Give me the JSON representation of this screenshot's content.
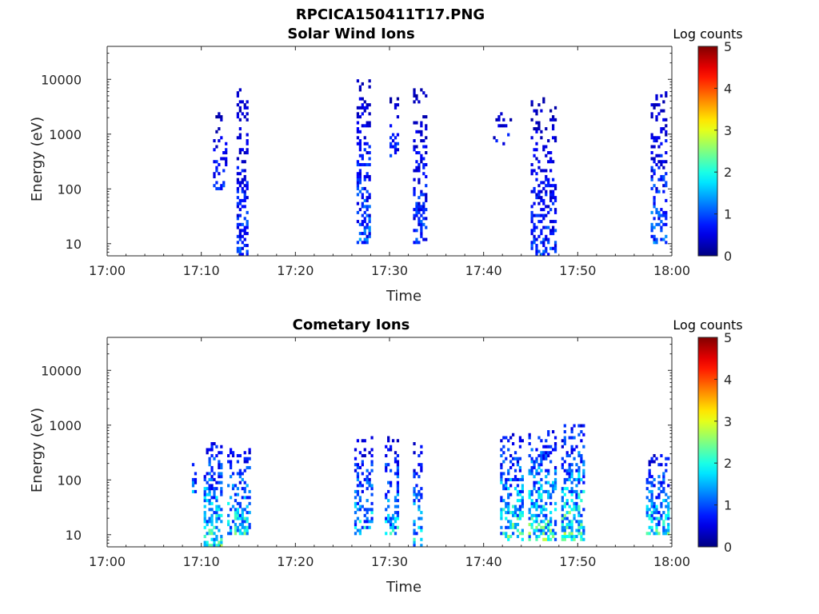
{
  "figure": {
    "title": "RPCICA150411T17.PNG"
  },
  "colormap": {
    "stops": [
      "#00008f",
      "#0000ff",
      "#00ffff",
      "#ffff00",
      "#ff0000",
      "#800000"
    ]
  },
  "chart_data": [
    {
      "type": "heatmap",
      "title": "Solar Wind Ions",
      "xlabel": "Time",
      "ylabel": "Energy (eV)",
      "x_ticks": [
        "17:00",
        "17:10",
        "17:20",
        "17:30",
        "17:40",
        "17:50",
        "18:00"
      ],
      "y_ticks": [
        "10",
        "100",
        "1000",
        "10000"
      ],
      "y_scale": "log",
      "xlim_minutes": [
        0,
        60
      ],
      "ylim_ev": [
        6,
        40000
      ],
      "colorbar": {
        "label": "Log counts",
        "ticks": [
          "0",
          "1",
          "2",
          "3",
          "4",
          "5"
        ],
        "range": [
          0,
          5
        ]
      },
      "bursts": [
        {
          "t": 12.0,
          "width": 1.5,
          "emin": 100,
          "emax": 2500,
          "density": 0.35,
          "level": 0.9
        },
        {
          "t": 14.3,
          "width": 1.2,
          "emin": 6,
          "emax": 8000,
          "density": 0.5,
          "level": 1.0
        },
        {
          "t": 27.3,
          "width": 1.4,
          "emin": 10,
          "emax": 10000,
          "density": 0.5,
          "level": 1.2
        },
        {
          "t": 30.5,
          "width": 1.2,
          "emin": 400,
          "emax": 5000,
          "density": 0.3,
          "level": 0.9
        },
        {
          "t": 33.2,
          "width": 1.4,
          "emin": 10,
          "emax": 8000,
          "density": 0.45,
          "level": 1.0
        },
        {
          "t": 42.0,
          "width": 2.0,
          "emin": 600,
          "emax": 3000,
          "density": 0.15,
          "level": 0.8
        },
        {
          "t": 46.3,
          "width": 2.8,
          "emin": 6,
          "emax": 5000,
          "density": 0.42,
          "level": 1.0
        },
        {
          "t": 58.6,
          "width": 1.8,
          "emin": 10,
          "emax": 6000,
          "density": 0.45,
          "level": 1.2
        }
      ]
    },
    {
      "type": "heatmap",
      "title": "Cometary Ions",
      "xlabel": "Time",
      "ylabel": "Energy (eV)",
      "x_ticks": [
        "17:00",
        "17:10",
        "17:20",
        "17:30",
        "17:40",
        "17:50",
        "18:00"
      ],
      "y_ticks": [
        "10",
        "100",
        "1000",
        "10000"
      ],
      "y_scale": "log",
      "xlim_minutes": [
        0,
        60
      ],
      "ylim_ev": [
        6,
        40000
      ],
      "colorbar": {
        "label": "Log counts",
        "ticks": [
          "0",
          "1",
          "2",
          "3",
          "4",
          "5"
        ],
        "range": [
          0,
          5
        ]
      },
      "bursts": [
        {
          "t": 9.2,
          "width": 0.4,
          "emin": 60,
          "emax": 250,
          "density": 0.6,
          "level": 1.5
        },
        {
          "t": 11.2,
          "width": 2.0,
          "emin": 6,
          "emax": 500,
          "density": 0.6,
          "level": 2.2
        },
        {
          "t": 14.0,
          "width": 2.4,
          "emin": 10,
          "emax": 400,
          "density": 0.6,
          "level": 2.0
        },
        {
          "t": 27.2,
          "width": 2.0,
          "emin": 10,
          "emax": 600,
          "density": 0.5,
          "level": 1.8
        },
        {
          "t": 30.3,
          "width": 1.5,
          "emin": 10,
          "emax": 600,
          "density": 0.5,
          "level": 1.8
        },
        {
          "t": 33.0,
          "width": 1.2,
          "emin": 6,
          "emax": 500,
          "density": 0.5,
          "level": 1.8
        },
        {
          "t": 43.0,
          "width": 2.5,
          "emin": 8,
          "emax": 700,
          "density": 0.55,
          "level": 2.2
        },
        {
          "t": 46.2,
          "width": 3.0,
          "emin": 8,
          "emax": 800,
          "density": 0.6,
          "level": 2.3
        },
        {
          "t": 49.5,
          "width": 2.5,
          "emin": 8,
          "emax": 1000,
          "density": 0.6,
          "level": 2.4
        },
        {
          "t": 58.5,
          "width": 2.5,
          "emin": 10,
          "emax": 300,
          "density": 0.6,
          "level": 2.0
        }
      ]
    }
  ]
}
